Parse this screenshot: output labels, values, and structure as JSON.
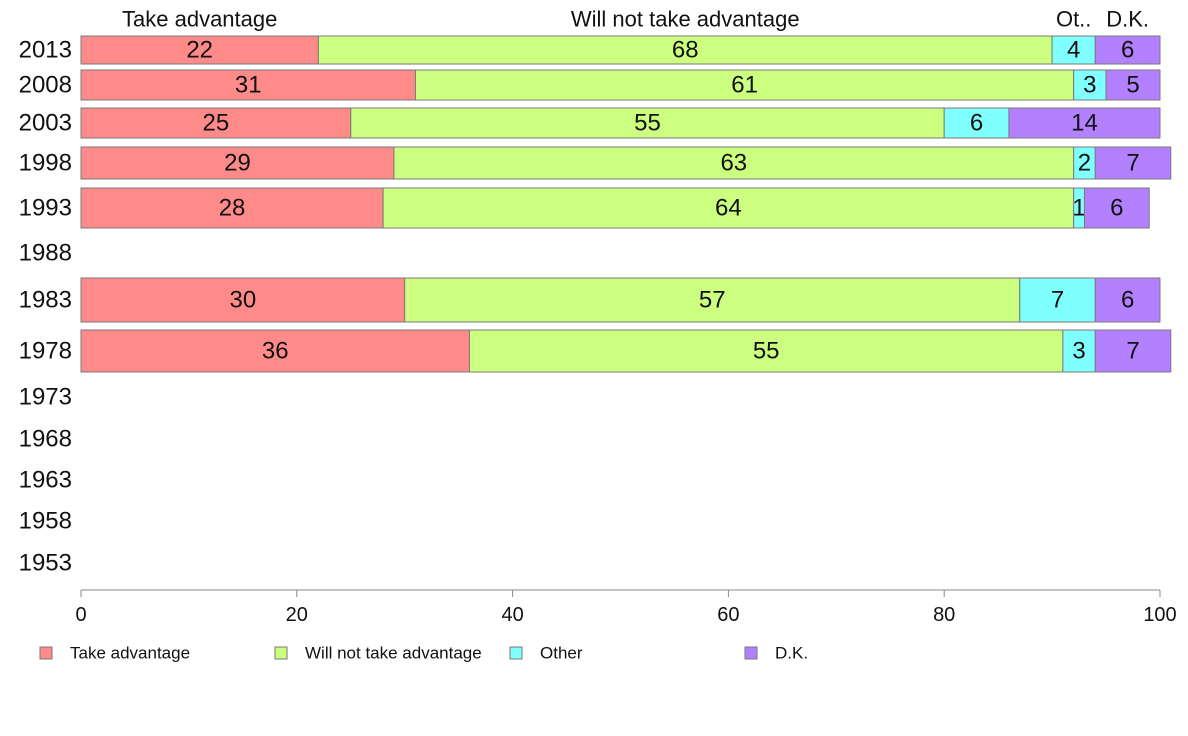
{
  "chart_data": {
    "type": "bar",
    "orientation": "horizontal",
    "stacked": true,
    "title": "",
    "xlabel": "",
    "ylabel": "",
    "xlim": [
      0,
      100
    ],
    "xticks": [
      0,
      20,
      40,
      60,
      80,
      100
    ],
    "grid": false,
    "legend_position": "bottom",
    "categories": [
      "2013",
      "2008",
      "2003",
      "1998",
      "1993",
      "1988",
      "1983",
      "1978",
      "1973",
      "1968",
      "1963",
      "1958",
      "1953"
    ],
    "column_headers": [
      "Take advantage",
      "Will not take advantage",
      "Ot..",
      "D.K."
    ],
    "series": [
      {
        "name": "Take advantage",
        "color": "#ff8a8a",
        "values": [
          22,
          31,
          25,
          29,
          28,
          null,
          30,
          36,
          null,
          null,
          null,
          null,
          null
        ]
      },
      {
        "name": "Will not take advantage",
        "color": "#ccff80",
        "values": [
          68,
          61,
          55,
          63,
          64,
          null,
          57,
          55,
          null,
          null,
          null,
          null,
          null
        ]
      },
      {
        "name": "Other",
        "color": "#80ffff",
        "values": [
          4,
          3,
          6,
          2,
          1,
          null,
          7,
          3,
          null,
          null,
          null,
          null,
          null
        ]
      },
      {
        "name": "D.K.",
        "color": "#b380ff",
        "values": [
          6,
          5,
          14,
          7,
          6,
          null,
          6,
          7,
          null,
          null,
          null,
          null,
          null
        ]
      }
    ]
  }
}
